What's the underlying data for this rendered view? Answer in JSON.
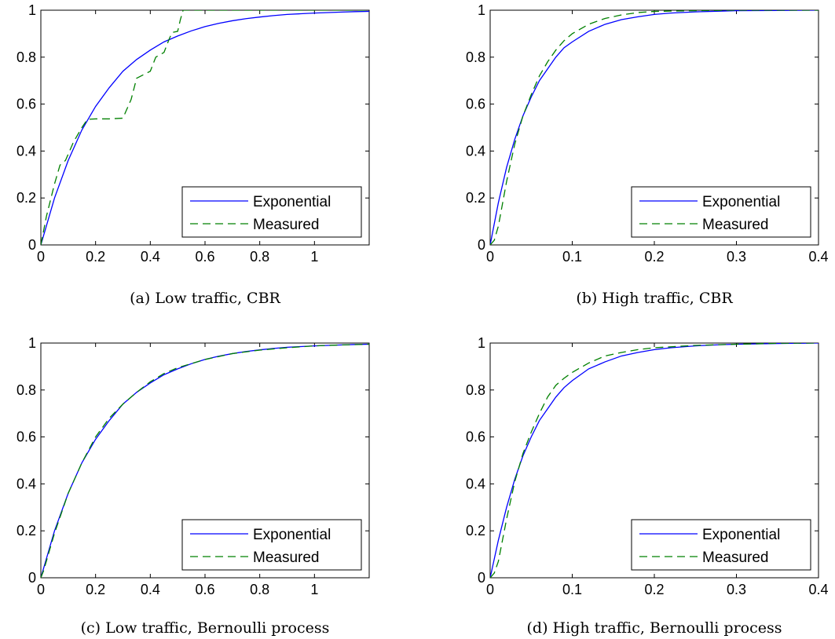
{
  "chart_data": [
    {
      "type": "line",
      "caption": "(a) Low traffic, CBR",
      "xlim": [
        0,
        1.2
      ],
      "ylim": [
        0,
        1
      ],
      "xticks": [
        0,
        0.2,
        0.4,
        0.6,
        0.8,
        1
      ],
      "xtick_labels": [
        "0",
        "0.2",
        "0.4",
        "0.6",
        "0.8",
        "1"
      ],
      "yticks": [
        0,
        0.2,
        0.4,
        0.6,
        0.8,
        1
      ],
      "ytick_labels": [
        "0",
        "0.2",
        "0.4",
        "0.6",
        "0.8",
        "1"
      ],
      "grid": false,
      "legend_position": "bottom-right",
      "series": [
        {
          "name": "Exponential",
          "style": "solid",
          "color": "#0000ff",
          "x": [
            0,
            0.05,
            0.1,
            0.15,
            0.2,
            0.25,
            0.3,
            0.35,
            0.4,
            0.45,
            0.5,
            0.55,
            0.6,
            0.65,
            0.7,
            0.75,
            0.8,
            0.85,
            0.9,
            0.95,
            1.0,
            1.05,
            1.1,
            1.15,
            1.2
          ],
          "y": [
            0,
            0.2,
            0.36,
            0.49,
            0.59,
            0.67,
            0.74,
            0.79,
            0.83,
            0.865,
            0.89,
            0.912,
            0.93,
            0.944,
            0.955,
            0.964,
            0.971,
            0.977,
            0.982,
            0.985,
            0.988,
            0.99,
            0.992,
            0.994,
            0.995
          ]
        },
        {
          "name": "Measured",
          "style": "dashed",
          "color": "#008000",
          "x": [
            0,
            0.02,
            0.05,
            0.07,
            0.09,
            0.12,
            0.15,
            0.17,
            0.2,
            0.25,
            0.3,
            0.33,
            0.35,
            0.4,
            0.42,
            0.45,
            0.47,
            0.48,
            0.5,
            0.51,
            0.52,
            0.6,
            0.7,
            0.8,
            1.0,
            1.2
          ],
          "y": [
            0,
            0.12,
            0.26,
            0.34,
            0.36,
            0.44,
            0.5,
            0.535,
            0.537,
            0.537,
            0.54,
            0.62,
            0.71,
            0.74,
            0.8,
            0.82,
            0.88,
            0.905,
            0.91,
            0.96,
            1.0,
            1.0,
            1.0,
            1.0,
            1.0,
            1.0
          ]
        }
      ]
    },
    {
      "type": "line",
      "caption": "(b) High traffic, CBR",
      "xlim": [
        0,
        0.4
      ],
      "ylim": [
        0,
        1
      ],
      "xticks": [
        0,
        0.1,
        0.2,
        0.3,
        0.4
      ],
      "xtick_labels": [
        "0",
        "0.1",
        "0.2",
        "0.3",
        "0.4"
      ],
      "yticks": [
        0,
        0.2,
        0.4,
        0.6,
        0.8,
        1
      ],
      "ytick_labels": [
        "0",
        "0.2",
        "0.4",
        "0.6",
        "0.8",
        "1"
      ],
      "grid": false,
      "legend_position": "bottom-right",
      "series": [
        {
          "name": "Exponential",
          "style": "solid",
          "color": "#0000ff",
          "x": [
            0,
            0.01,
            0.02,
            0.03,
            0.04,
            0.05,
            0.06,
            0.07,
            0.08,
            0.09,
            0.1,
            0.12,
            0.14,
            0.16,
            0.18,
            0.2,
            0.22,
            0.25,
            0.28,
            0.3,
            0.35,
            0.4
          ],
          "y": [
            0,
            0.18,
            0.33,
            0.45,
            0.55,
            0.63,
            0.7,
            0.75,
            0.8,
            0.84,
            0.865,
            0.91,
            0.94,
            0.96,
            0.972,
            0.982,
            0.988,
            0.993,
            0.996,
            0.998,
            0.999,
            1.0
          ]
        },
        {
          "name": "Measured",
          "style": "dashed",
          "color": "#008000",
          "x": [
            0,
            0.005,
            0.01,
            0.02,
            0.03,
            0.04,
            0.05,
            0.06,
            0.07,
            0.08,
            0.09,
            0.1,
            0.12,
            0.14,
            0.16,
            0.18,
            0.2,
            0.25,
            0.3,
            0.35,
            0.4
          ],
          "y": [
            0,
            0.02,
            0.08,
            0.27,
            0.43,
            0.55,
            0.64,
            0.72,
            0.78,
            0.83,
            0.87,
            0.9,
            0.94,
            0.965,
            0.98,
            0.99,
            0.995,
            0.998,
            1.0,
            1.0,
            1.0
          ]
        }
      ]
    },
    {
      "type": "line",
      "caption": "(c) Low traffic, Bernoulli process",
      "xlim": [
        0,
        1.2
      ],
      "ylim": [
        0,
        1
      ],
      "xticks": [
        0,
        0.2,
        0.4,
        0.6,
        0.8,
        1
      ],
      "xtick_labels": [
        "0",
        "0.2",
        "0.4",
        "0.6",
        "0.8",
        "1"
      ],
      "yticks": [
        0,
        0.2,
        0.4,
        0.6,
        0.8,
        1
      ],
      "ytick_labels": [
        "0",
        "0.2",
        "0.4",
        "0.6",
        "0.8",
        "1"
      ],
      "grid": false,
      "legend_position": "bottom-right",
      "series": [
        {
          "name": "Exponential",
          "style": "solid",
          "color": "#0000ff",
          "x": [
            0,
            0.05,
            0.1,
            0.15,
            0.2,
            0.25,
            0.3,
            0.35,
            0.4,
            0.45,
            0.5,
            0.55,
            0.6,
            0.65,
            0.7,
            0.75,
            0.8,
            0.85,
            0.9,
            0.95,
            1.0,
            1.05,
            1.1,
            1.15,
            1.2
          ],
          "y": [
            0,
            0.2,
            0.36,
            0.49,
            0.59,
            0.67,
            0.74,
            0.79,
            0.83,
            0.865,
            0.89,
            0.912,
            0.93,
            0.944,
            0.955,
            0.964,
            0.971,
            0.977,
            0.982,
            0.985,
            0.988,
            0.99,
            0.992,
            0.994,
            0.995
          ]
        },
        {
          "name": "Measured",
          "style": "dashed",
          "color": "#008000",
          "x": [
            0,
            0.01,
            0.03,
            0.05,
            0.1,
            0.15,
            0.2,
            0.25,
            0.3,
            0.35,
            0.4,
            0.45,
            0.5,
            0.6,
            0.7,
            0.8,
            0.9,
            1.0,
            1.1,
            1.2
          ],
          "y": [
            0,
            0.03,
            0.11,
            0.19,
            0.36,
            0.49,
            0.6,
            0.68,
            0.74,
            0.79,
            0.835,
            0.87,
            0.895,
            0.93,
            0.955,
            0.97,
            0.98,
            0.988,
            0.992,
            0.995
          ]
        }
      ]
    },
    {
      "type": "line",
      "caption": "(d) High traffic, Bernoulli process",
      "xlim": [
        0,
        0.4
      ],
      "ylim": [
        0,
        1
      ],
      "xticks": [
        0,
        0.1,
        0.2,
        0.3,
        0.4
      ],
      "xtick_labels": [
        "0",
        "0.1",
        "0.2",
        "0.3",
        "0.4"
      ],
      "yticks": [
        0,
        0.2,
        0.4,
        0.6,
        0.8,
        1
      ],
      "ytick_labels": [
        "0",
        "0.2",
        "0.4",
        "0.6",
        "0.8",
        "1"
      ],
      "grid": false,
      "legend_position": "bottom-right",
      "series": [
        {
          "name": "Exponential",
          "style": "solid",
          "color": "#0000ff",
          "x": [
            0,
            0.01,
            0.02,
            0.03,
            0.04,
            0.05,
            0.06,
            0.07,
            0.08,
            0.09,
            0.1,
            0.12,
            0.14,
            0.16,
            0.18,
            0.2,
            0.22,
            0.25,
            0.28,
            0.3,
            0.35,
            0.4
          ],
          "y": [
            0,
            0.16,
            0.3,
            0.42,
            0.52,
            0.6,
            0.67,
            0.72,
            0.77,
            0.81,
            0.84,
            0.89,
            0.92,
            0.945,
            0.96,
            0.972,
            0.98,
            0.988,
            0.993,
            0.995,
            0.998,
            1.0
          ]
        },
        {
          "name": "Measured",
          "style": "dashed",
          "color": "#008000",
          "x": [
            0,
            0.005,
            0.01,
            0.02,
            0.03,
            0.04,
            0.05,
            0.06,
            0.07,
            0.08,
            0.09,
            0.1,
            0.12,
            0.14,
            0.16,
            0.18,
            0.2,
            0.25,
            0.3,
            0.35,
            0.4
          ],
          "y": [
            0,
            0.02,
            0.07,
            0.25,
            0.41,
            0.53,
            0.62,
            0.7,
            0.77,
            0.82,
            0.85,
            0.875,
            0.915,
            0.945,
            0.96,
            0.972,
            0.98,
            0.99,
            0.995,
            0.999,
            1.0
          ]
        }
      ]
    }
  ]
}
